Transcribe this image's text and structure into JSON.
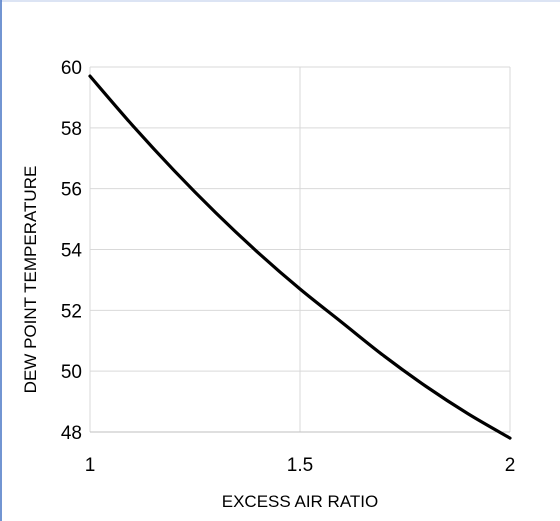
{
  "chart_data": {
    "type": "line",
    "title": "",
    "xlabel": "EXCESS AIR RATIO",
    "ylabel": "DEW POINT TEMPERATURE",
    "xlim": [
      1,
      2
    ],
    "ylim": [
      48,
      60
    ],
    "xticks": [
      1,
      1.5,
      2
    ],
    "yticks": [
      48,
      50,
      52,
      54,
      56,
      58,
      60
    ],
    "xtick_labels": [
      "1",
      "1.5",
      "2"
    ],
    "ytick_labels": [
      "48",
      "50",
      "52",
      "54",
      "56",
      "58",
      "60"
    ],
    "grid": true,
    "legend": "none",
    "series": [
      {
        "color": "#000000",
        "x": [
          1.0,
          1.1,
          1.2,
          1.3,
          1.4,
          1.5,
          1.6,
          1.7,
          1.8,
          1.9,
          2.0
        ],
        "y": [
          59.7,
          58.1,
          56.6,
          55.2,
          53.9,
          52.7,
          51.6,
          50.5,
          49.5,
          48.6,
          47.8
        ]
      }
    ]
  }
}
